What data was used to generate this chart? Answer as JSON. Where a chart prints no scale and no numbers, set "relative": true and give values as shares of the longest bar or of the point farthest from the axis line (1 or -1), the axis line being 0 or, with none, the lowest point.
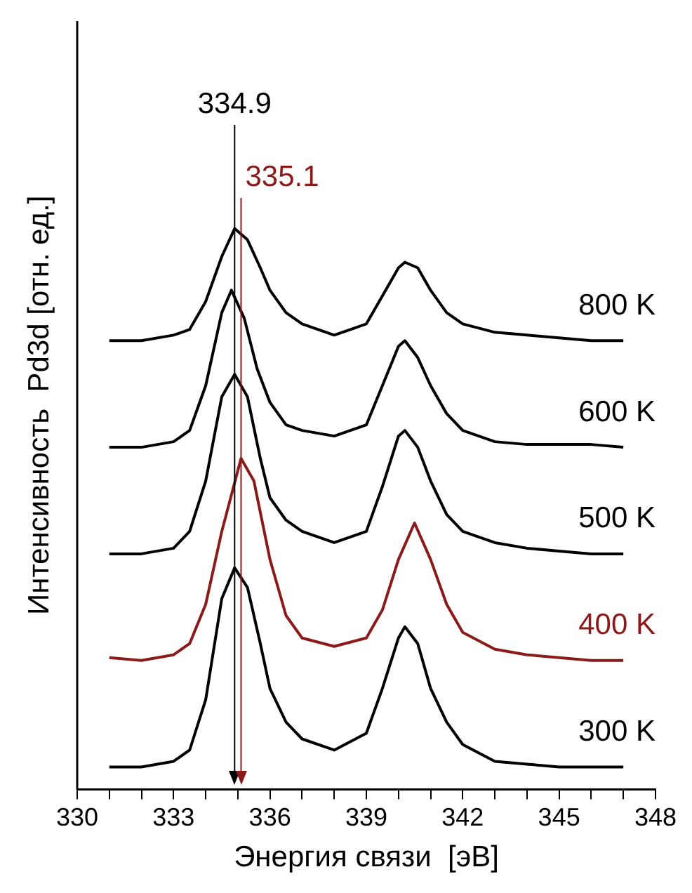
{
  "chart_data": {
    "type": "line",
    "relative": true,
    "xlabel": "Энергия связи  [эВ]",
    "ylabel": "Интенсивность  Pd3d [отн. ед.]",
    "xlim": [
      330,
      348
    ],
    "xticks": [
      330,
      {
        "value": 331,
        "label": null
      },
      {
        "value": 332,
        "label": null
      },
      333,
      {
        "value": 334,
        "label": null
      },
      {
        "value": 335,
        "label": null
      },
      336,
      {
        "value": 337,
        "label": null
      },
      {
        "value": 338,
        "label": null
      },
      339,
      {
        "value": 340,
        "label": null
      },
      {
        "value": 341,
        "label": null
      },
      342,
      {
        "value": 343,
        "label": null
      },
      {
        "value": 344,
        "label": null
      },
      345,
      {
        "value": 346,
        "label": null
      },
      {
        "value": 347,
        "label": null
      },
      348
    ],
    "grid": false,
    "legend": false,
    "marker": "none",
    "line_style": "solid",
    "ref_lines": [
      {
        "axis": "x",
        "value": 334.9,
        "label": "334.9",
        "color": "#000000"
      },
      {
        "axis": "x",
        "value": 335.1,
        "label": "335.1",
        "color": "#8b1a1a"
      }
    ],
    "series": [
      {
        "name": "800 K",
        "color": "#000000",
        "x": [
          331,
          332,
          333,
          333.5,
          334,
          334.5,
          334.9,
          335.3,
          335.7,
          336,
          336.5,
          337,
          338,
          339,
          339.5,
          340,
          340.2,
          340.6,
          341,
          341.5,
          342,
          343,
          344,
          345,
          346,
          347
        ],
        "values": [
          0.8,
          0.8,
          0.81,
          0.82,
          0.87,
          0.95,
          1,
          0.98,
          0.93,
          0.89,
          0.85,
          0.83,
          0.81,
          0.83,
          0.88,
          0.93,
          0.94,
          0.93,
          0.89,
          0.85,
          0.83,
          0.815,
          0.81,
          0.805,
          0.8,
          0.8
        ]
      },
      {
        "name": "600 K",
        "color": "#000000",
        "x": [
          331,
          332,
          333,
          333.5,
          334,
          334.5,
          334.8,
          335.2,
          335.6,
          336,
          336.5,
          337,
          338,
          339,
          339.5,
          340,
          340.2,
          340.6,
          341,
          341.5,
          342,
          343,
          344,
          345,
          346,
          347
        ],
        "values": [
          0.61,
          0.61,
          0.62,
          0.64,
          0.72,
          0.85,
          0.89,
          0.84,
          0.75,
          0.69,
          0.65,
          0.64,
          0.63,
          0.65,
          0.72,
          0.79,
          0.8,
          0.77,
          0.72,
          0.67,
          0.64,
          0.62,
          0.615,
          0.615,
          0.615,
          0.61
        ]
      },
      {
        "name": "500 K",
        "color": "#000000",
        "x": [
          331,
          332,
          333,
          333.5,
          334,
          334.5,
          334.9,
          335.3,
          335.7,
          336,
          336.5,
          337,
          338,
          339,
          339.5,
          340,
          340.2,
          340.6,
          341,
          341.5,
          342,
          343,
          344,
          345,
          346,
          347
        ],
        "values": [
          0.42,
          0.42,
          0.43,
          0.46,
          0.55,
          0.7,
          0.74,
          0.7,
          0.59,
          0.52,
          0.48,
          0.46,
          0.44,
          0.46,
          0.54,
          0.63,
          0.64,
          0.61,
          0.55,
          0.49,
          0.46,
          0.44,
          0.43,
          0.425,
          0.42,
          0.42
        ]
      },
      {
        "name": "400 K",
        "color": "#8b1a1a",
        "x": [
          331,
          332,
          333,
          333.5,
          334,
          334.5,
          335.1,
          335.5,
          336,
          336.5,
          337,
          338,
          339,
          339.5,
          340,
          340.5,
          341,
          341.5,
          342,
          343,
          344,
          345,
          346,
          347
        ],
        "values": [
          0.235,
          0.23,
          0.24,
          0.26,
          0.33,
          0.46,
          0.59,
          0.55,
          0.41,
          0.31,
          0.27,
          0.255,
          0.27,
          0.32,
          0.41,
          0.475,
          0.41,
          0.33,
          0.28,
          0.25,
          0.24,
          0.235,
          0.23,
          0.23
        ]
      },
      {
        "name": "300 K",
        "color": "#000000",
        "x": [
          331,
          332,
          333,
          333.5,
          334,
          334.5,
          334.9,
          335.3,
          335.7,
          336,
          336.5,
          337,
          338,
          339,
          339.5,
          340,
          340.2,
          340.6,
          341,
          341.5,
          342,
          343,
          344,
          345,
          346,
          347
        ],
        "values": [
          0.04,
          0.04,
          0.05,
          0.07,
          0.16,
          0.34,
          0.395,
          0.36,
          0.26,
          0.18,
          0.12,
          0.09,
          0.07,
          0.1,
          0.18,
          0.27,
          0.29,
          0.26,
          0.18,
          0.12,
          0.08,
          0.05,
          0.045,
          0.04,
          0.04,
          0.04
        ]
      }
    ]
  }
}
